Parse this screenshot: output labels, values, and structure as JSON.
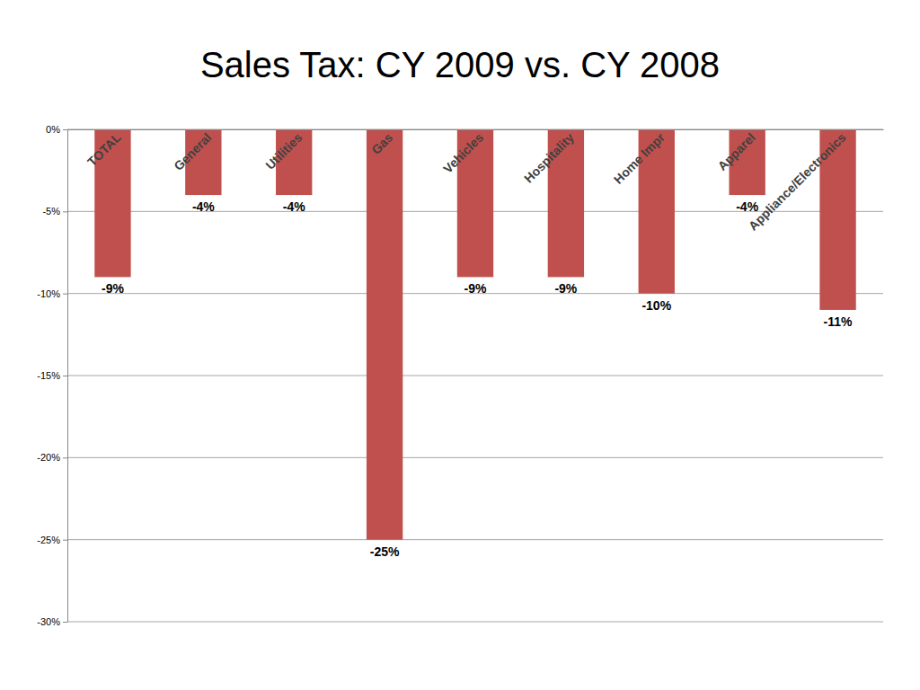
{
  "chart_data": {
    "type": "bar",
    "title": "Sales Tax: CY 2009 vs. CY 2008",
    "categories": [
      "TOTAL",
      "General",
      "Utilities",
      "Gas",
      "Vehicles",
      "Hospitality",
      "Home Impr",
      "Apparel",
      "Appliance/Electronics"
    ],
    "values": [
      -9,
      -4,
      -4,
      -25,
      -9,
      -9,
      -10,
      -4,
      -11
    ],
    "value_labels": [
      "-9%",
      "-4%",
      "-4%",
      "-25%",
      "-9%",
      "-9%",
      "-10%",
      "-4%",
      "-11%"
    ],
    "color": "#c0504d",
    "ylim": [
      -30,
      0
    ],
    "yticks": [
      {
        "value": 0,
        "label": "0%"
      },
      {
        "value": -5,
        "label": "-5%"
      },
      {
        "value": -10,
        "label": "-10%"
      },
      {
        "value": -15,
        "label": "-15%"
      },
      {
        "value": -20,
        "label": "-20%"
      },
      {
        "value": -25,
        "label": "-25%"
      },
      {
        "value": -30,
        "label": "-30%"
      }
    ],
    "grid": true,
    "data_labels": true
  }
}
